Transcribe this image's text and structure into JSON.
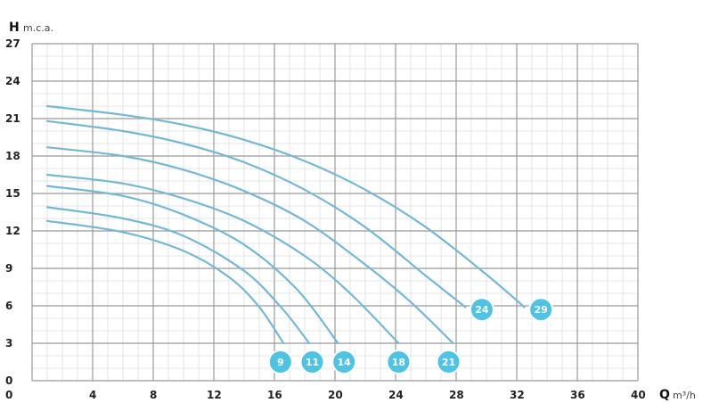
{
  "chart_data": {
    "type": "line",
    "y_axis": {
      "letter": "H",
      "unit": "m.c.a.",
      "ticks": [
        "0",
        "3",
        "6",
        "9",
        "12",
        "15",
        "18",
        "21",
        "24",
        "27"
      ],
      "range": [
        0,
        27
      ]
    },
    "x_axis": {
      "letter": "Q",
      "unit": "m³/h",
      "ticks": [
        "0",
        "4",
        "8",
        "12",
        "16",
        "20",
        "24",
        "28",
        "32",
        "36",
        "40"
      ],
      "range": [
        0,
        40
      ]
    },
    "grid": true,
    "colors": {
      "curve": "#74b8d6",
      "badge": "#4fc3e3",
      "major_grid": "#9a9a9a",
      "minor_grid": "#dcdcdc"
    },
    "series": [
      {
        "name": "9",
        "label_at": [
          16.4,
          1.5
        ],
        "points": [
          [
            1,
            12.8
          ],
          [
            6,
            11.9
          ],
          [
            10,
            10.4
          ],
          [
            13,
            8.3
          ],
          [
            15,
            5.9
          ],
          [
            16.6,
            3.0
          ]
        ]
      },
      {
        "name": "11",
        "label_at": [
          18.5,
          1.5
        ],
        "points": [
          [
            1,
            13.9
          ],
          [
            6,
            13.0
          ],
          [
            10,
            11.6
          ],
          [
            14,
            8.8
          ],
          [
            16.5,
            5.8
          ],
          [
            18.3,
            3.0
          ]
        ]
      },
      {
        "name": "14",
        "label_at": [
          20.6,
          1.5
        ],
        "points": [
          [
            1,
            15.6
          ],
          [
            6,
            14.8
          ],
          [
            10,
            13.3
          ],
          [
            14,
            10.9
          ],
          [
            17.5,
            7.3
          ],
          [
            20.2,
            3.0
          ]
        ]
      },
      {
        "name": "18",
        "label_at": [
          24.2,
          1.5
        ],
        "points": [
          [
            1,
            16.5
          ],
          [
            6,
            15.8
          ],
          [
            10,
            14.6
          ],
          [
            14,
            12.8
          ],
          [
            18,
            10.0
          ],
          [
            21,
            7.0
          ],
          [
            24.2,
            3.0
          ]
        ]
      },
      {
        "name": "21",
        "label_at": [
          27.5,
          1.5
        ],
        "points": [
          [
            1,
            18.7
          ],
          [
            6,
            18.0
          ],
          [
            10,
            16.9
          ],
          [
            14,
            15.2
          ],
          [
            18,
            12.8
          ],
          [
            22,
            9.3
          ],
          [
            25,
            6.3
          ],
          [
            27.8,
            3.0
          ]
        ]
      },
      {
        "name": "24",
        "label_at": [
          29.7,
          5.7
        ],
        "points": [
          [
            1,
            20.8
          ],
          [
            6,
            20.0
          ],
          [
            10,
            19.0
          ],
          [
            14,
            17.5
          ],
          [
            18,
            15.3
          ],
          [
            22,
            12.3
          ],
          [
            26,
            8.4
          ],
          [
            28.6,
            5.9
          ]
        ]
      },
      {
        "name": "29",
        "label_at": [
          33.6,
          5.7
        ],
        "points": [
          [
            1,
            22.0
          ],
          [
            6,
            21.3
          ],
          [
            10,
            20.5
          ],
          [
            14,
            19.3
          ],
          [
            18,
            17.6
          ],
          [
            22,
            15.3
          ],
          [
            26,
            12.3
          ],
          [
            30,
            8.5
          ],
          [
            32.5,
            5.9
          ]
        ]
      }
    ]
  }
}
